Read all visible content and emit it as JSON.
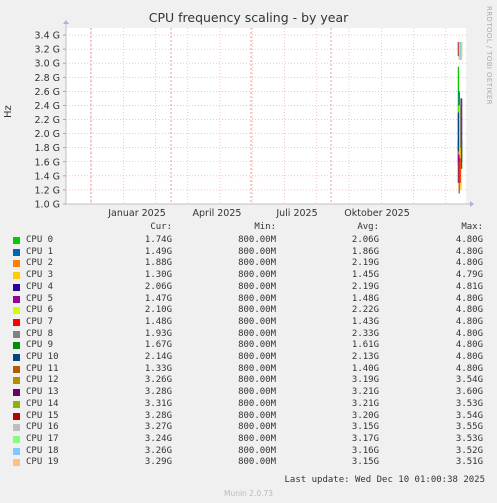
{
  "chart_data": {
    "type": "line",
    "title": "CPU frequency scaling - by year",
    "ylabel": "Hz",
    "ylim": [
      1.0,
      3.5
    ],
    "y_ticks": [
      "1.0 G",
      "1.2 G",
      "1.4 G",
      "1.6 G",
      "1.8 G",
      "2.0 G",
      "2.2 G",
      "2.4 G",
      "2.6 G",
      "2.8 G",
      "3.0 G",
      "3.2 G",
      "3.4 G"
    ],
    "x_ticks": [
      "Januar 2025",
      "April 2025",
      "Juli 2025",
      "Oktober 2025"
    ],
    "side_text": "RRDTOOL / TOBI OETIKER",
    "grid": true,
    "columns": [
      "Cur:",
      "Min:",
      "Avg:",
      "Max:"
    ],
    "series": [
      {
        "name": "CPU 0",
        "color": "#00cc00",
        "cur": "1.74G",
        "min": "800.00M",
        "avg": "2.06G",
        "max": "4.80G",
        "lo": 1.55,
        "hi": 2.95
      },
      {
        "name": "CPU 1",
        "color": "#0066b3",
        "cur": "1.49G",
        "min": "800.00M",
        "avg": "1.86G",
        "max": "4.80G",
        "lo": 1.45,
        "hi": 2.6
      },
      {
        "name": "CPU 2",
        "color": "#ff8000",
        "cur": "1.88G",
        "min": "800.00M",
        "avg": "2.19G",
        "max": "4.80G",
        "lo": 1.35,
        "hi": 2.4
      },
      {
        "name": "CPU 3",
        "color": "#ffcc00",
        "cur": "1.30G",
        "min": "800.00M",
        "avg": "1.45G",
        "max": "4.79G",
        "lo": 1.2,
        "hi": 1.8
      },
      {
        "name": "CPU 4",
        "color": "#330099",
        "cur": "2.06G",
        "min": "800.00M",
        "avg": "2.19G",
        "max": "4.81G",
        "lo": 1.6,
        "hi": 2.5
      },
      {
        "name": "CPU 5",
        "color": "#990099",
        "cur": "1.47G",
        "min": "800.00M",
        "avg": "1.48G",
        "max": "4.80G",
        "lo": 1.3,
        "hi": 1.9
      },
      {
        "name": "CPU 6",
        "color": "#ccff00",
        "cur": "2.10G",
        "min": "800.00M",
        "avg": "2.22G",
        "max": "4.80G",
        "lo": 1.7,
        "hi": 2.4
      },
      {
        "name": "CPU 7",
        "color": "#ff0000",
        "cur": "1.48G",
        "min": "800.00M",
        "avg": "1.43G",
        "max": "4.80G",
        "lo": 1.3,
        "hi": 1.65
      },
      {
        "name": "CPU 8",
        "color": "#808080",
        "cur": "1.93G",
        "min": "800.00M",
        "avg": "2.33G",
        "max": "4.80G",
        "lo": 1.8,
        "hi": 2.5
      },
      {
        "name": "CPU 9",
        "color": "#008f00",
        "cur": "1.67G",
        "min": "800.00M",
        "avg": "1.61G",
        "max": "4.80G",
        "lo": 1.5,
        "hi": 1.9
      },
      {
        "name": "CPU 10",
        "color": "#00487d",
        "cur": "2.14G",
        "min": "800.00M",
        "avg": "2.13G",
        "max": "4.80G",
        "lo": 1.75,
        "hi": 2.3
      },
      {
        "name": "CPU 11",
        "color": "#b35a00",
        "cur": "1.33G",
        "min": "800.00M",
        "avg": "1.40G",
        "max": "4.80G",
        "lo": 1.15,
        "hi": 1.6
      },
      {
        "name": "CPU 12",
        "color": "#b38f00",
        "cur": "3.26G",
        "min": "800.00M",
        "avg": "3.19G",
        "max": "3.54G",
        "lo": 3.05,
        "hi": 3.3
      },
      {
        "name": "CPU 13",
        "color": "#6b006b",
        "cur": "3.28G",
        "min": "800.00M",
        "avg": "3.21G",
        "max": "3.60G",
        "lo": 3.1,
        "hi": 3.3
      },
      {
        "name": "CPU 14",
        "color": "#8fb300",
        "cur": "3.31G",
        "min": "800.00M",
        "avg": "3.21G",
        "max": "3.53G",
        "lo": 3.1,
        "hi": 3.3
      },
      {
        "name": "CPU 15",
        "color": "#b30000",
        "cur": "3.28G",
        "min": "800.00M",
        "avg": "3.20G",
        "max": "3.54G",
        "lo": 3.1,
        "hi": 3.3
      },
      {
        "name": "CPU 16",
        "color": "#bebebe",
        "cur": "3.27G",
        "min": "800.00M",
        "avg": "3.15G",
        "max": "3.55G",
        "lo": 3.05,
        "hi": 3.3
      },
      {
        "name": "CPU 17",
        "color": "#80ff80",
        "cur": "3.24G",
        "min": "800.00M",
        "avg": "3.17G",
        "max": "3.53G",
        "lo": 3.05,
        "hi": 3.3
      },
      {
        "name": "CPU 18",
        "color": "#80c9ff",
        "cur": "3.26G",
        "min": "800.00M",
        "avg": "3.16G",
        "max": "3.52G",
        "lo": 3.05,
        "hi": 3.3
      },
      {
        "name": "CPU 19",
        "color": "#ffc080",
        "cur": "3.29G",
        "min": "800.00M",
        "avg": "3.15G",
        "max": "3.51G",
        "lo": 3.05,
        "hi": 3.3
      }
    ]
  },
  "last_update": "Last update: Wed Dec 10 01:00:38 2025",
  "footer": "Munin 2.0.73"
}
